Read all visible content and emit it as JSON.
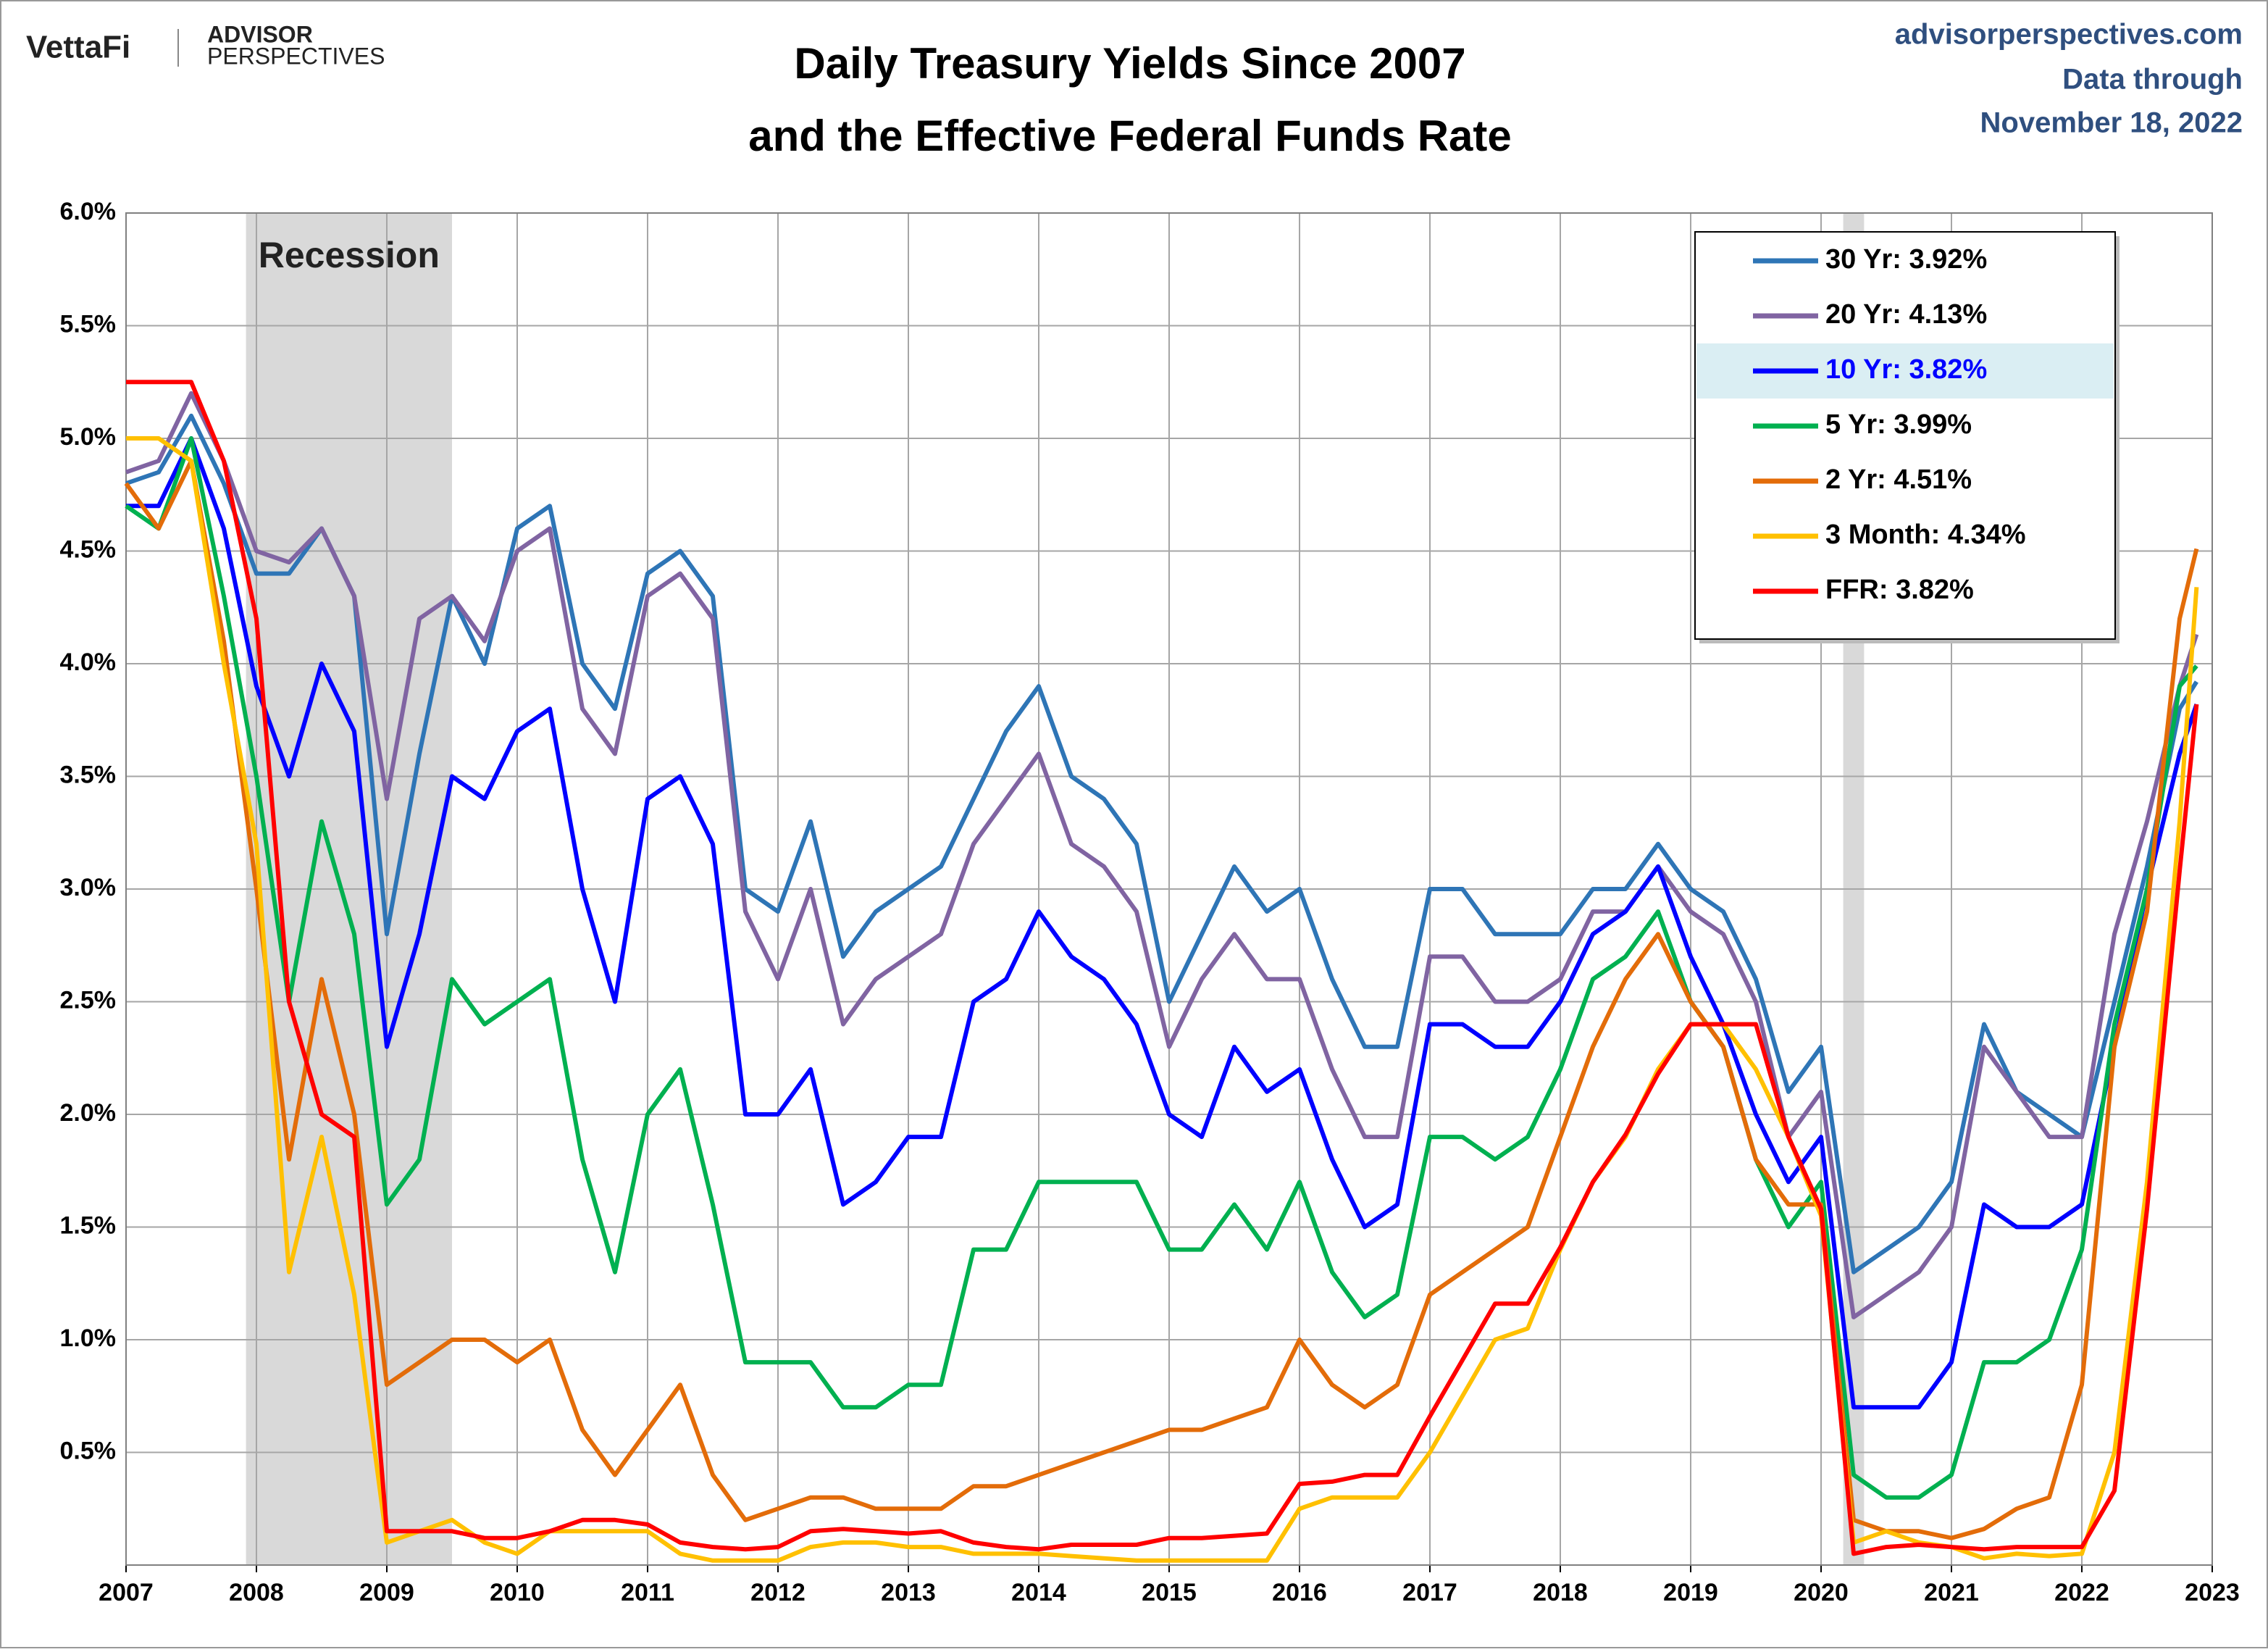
{
  "header": {
    "logo": "VettaFi",
    "brand": [
      "ADVISOR",
      "PERSPECTIVES"
    ],
    "site": "advisorperspectives.com",
    "note": [
      "Data through",
      "November 18, 2022"
    ]
  },
  "chart_data": {
    "type": "line",
    "title": [
      "Daily Treasury Yields Since 2007",
      "and the Effective Federal Funds Rate"
    ],
    "annotation": "Recession",
    "recessions": [
      [
        2007.92,
        2009.5
      ],
      [
        2020.17,
        2020.33
      ]
    ],
    "recession_color": "#d9d9d9",
    "xlim": [
      2007,
      2023
    ],
    "xticks": [
      2007,
      2008,
      2009,
      2010,
      2011,
      2012,
      2013,
      2014,
      2015,
      2016,
      2017,
      2018,
      2019,
      2020,
      2021,
      2022,
      2023
    ],
    "ylim": [
      0,
      6
    ],
    "yticks": [
      {
        "value": 0.5,
        "label": "0.5%"
      },
      {
        "value": 1,
        "label": "1.0%"
      },
      {
        "value": 1.5,
        "label": "1.5%"
      },
      {
        "value": 2,
        "label": "2.0%"
      },
      {
        "value": 2.5,
        "label": "2.5%"
      },
      {
        "value": 3,
        "label": "3.0%"
      },
      {
        "value": 3.5,
        "label": "3.5%"
      },
      {
        "value": 4,
        "label": "4.0%"
      },
      {
        "value": 4.5,
        "label": "4.5%"
      },
      {
        "value": 5,
        "label": "5.0%"
      },
      {
        "value": 5.5,
        "label": "5.5%"
      },
      {
        "value": 6,
        "label": "6.0%"
      }
    ],
    "grid": true,
    "legend": "upper right",
    "x": [
      2007,
      2007.25,
      2007.5,
      2007.75,
      2008,
      2008.25,
      2008.5,
      2008.75,
      2009,
      2009.25,
      2009.5,
      2009.75,
      2010,
      2010.25,
      2010.5,
      2010.75,
      2011,
      2011.25,
      2011.5,
      2011.75,
      2012,
      2012.25,
      2012.5,
      2012.75,
      2013,
      2013.25,
      2013.5,
      2013.75,
      2014,
      2014.25,
      2014.5,
      2014.75,
      2015,
      2015.25,
      2015.5,
      2015.75,
      2016,
      2016.25,
      2016.5,
      2016.75,
      2017,
      2017.25,
      2017.5,
      2017.75,
      2018,
      2018.25,
      2018.5,
      2018.75,
      2019,
      2019.25,
      2019.5,
      2019.75,
      2020,
      2020.25,
      2020.5,
      2020.75,
      2021,
      2021.25,
      2021.5,
      2021.75,
      2022,
      2022.25,
      2022.5,
      2022.75,
      2022.88
    ],
    "series": [
      {
        "name": "30 Yr: 3.92%",
        "color": "#2e75b6",
        "values": [
          4.8,
          4.85,
          5.1,
          4.8,
          4.4,
          4.4,
          4.6,
          4.3,
          2.8,
          3.6,
          4.3,
          4.0,
          4.6,
          4.7,
          4.0,
          3.8,
          4.4,
          4.5,
          4.3,
          3.0,
          2.9,
          3.3,
          2.7,
          2.9,
          3.0,
          3.1,
          3.4,
          3.7,
          3.9,
          3.5,
          3.4,
          3.2,
          2.5,
          2.8,
          3.1,
          2.9,
          3.0,
          2.6,
          2.3,
          2.3,
          3.0,
          3.0,
          2.8,
          2.8,
          2.8,
          3.0,
          3.0,
          3.2,
          3.0,
          2.9,
          2.6,
          2.1,
          2.3,
          1.3,
          1.4,
          1.5,
          1.7,
          2.4,
          2.1,
          2.0,
          1.9,
          2.5,
          3.1,
          3.8,
          3.92
        ]
      },
      {
        "name": "20 Yr: 4.13%",
        "color": "#8064a2",
        "values": [
          4.85,
          4.9,
          5.2,
          4.9,
          4.5,
          4.45,
          4.6,
          4.3,
          3.4,
          4.2,
          4.3,
          4.1,
          4.5,
          4.6,
          3.8,
          3.6,
          4.3,
          4.4,
          4.2,
          2.9,
          2.6,
          3.0,
          2.4,
          2.6,
          2.7,
          2.8,
          3.2,
          3.4,
          3.6,
          3.2,
          3.1,
          2.9,
          2.3,
          2.6,
          2.8,
          2.6,
          2.6,
          2.2,
          1.9,
          1.9,
          2.7,
          2.7,
          2.5,
          2.5,
          2.6,
          2.9,
          2.9,
          3.1,
          2.9,
          2.8,
          2.5,
          1.9,
          2.1,
          1.1,
          1.2,
          1.3,
          1.5,
          2.3,
          2.1,
          1.9,
          1.9,
          2.8,
          3.3,
          3.9,
          4.13
        ]
      },
      {
        "name": "10 Yr: 3.82%",
        "color": "#0000ff",
        "values": [
          4.7,
          4.7,
          5.0,
          4.6,
          3.9,
          3.5,
          4.0,
          3.7,
          2.3,
          2.8,
          3.5,
          3.4,
          3.7,
          3.8,
          3.0,
          2.5,
          3.4,
          3.5,
          3.2,
          2.0,
          2.0,
          2.2,
          1.6,
          1.7,
          1.9,
          1.9,
          2.5,
          2.6,
          2.9,
          2.7,
          2.6,
          2.4,
          2.0,
          1.9,
          2.3,
          2.1,
          2.2,
          1.8,
          1.5,
          1.6,
          2.4,
          2.4,
          2.3,
          2.3,
          2.5,
          2.8,
          2.9,
          3.1,
          2.7,
          2.4,
          2.0,
          1.7,
          1.9,
          0.7,
          0.7,
          0.7,
          0.9,
          1.6,
          1.5,
          1.5,
          1.6,
          2.3,
          3.0,
          3.6,
          3.82
        ]
      },
      {
        "name": "5 Yr: 3.99%",
        "color": "#00b050",
        "values": [
          4.7,
          4.6,
          5.0,
          4.3,
          3.5,
          2.5,
          3.3,
          2.8,
          1.6,
          1.8,
          2.6,
          2.4,
          2.5,
          2.6,
          1.8,
          1.3,
          2.0,
          2.2,
          1.6,
          0.9,
          0.9,
          0.9,
          0.7,
          0.7,
          0.8,
          0.8,
          1.4,
          1.4,
          1.7,
          1.7,
          1.7,
          1.7,
          1.4,
          1.4,
          1.6,
          1.4,
          1.7,
          1.3,
          1.1,
          1.2,
          1.9,
          1.9,
          1.8,
          1.9,
          2.2,
          2.6,
          2.7,
          2.9,
          2.5,
          2.3,
          1.8,
          1.5,
          1.7,
          0.4,
          0.3,
          0.3,
          0.4,
          0.9,
          0.9,
          1.0,
          1.4,
          2.4,
          3.0,
          3.9,
          3.99
        ]
      },
      {
        "name": "2 Yr: 4.51%",
        "color": "#e36c09",
        "values": [
          4.8,
          4.6,
          4.9,
          4.1,
          3.0,
          1.8,
          2.6,
          2.0,
          0.8,
          0.9,
          1.0,
          1.0,
          0.9,
          1.0,
          0.6,
          0.4,
          0.6,
          0.8,
          0.4,
          0.2,
          0.25,
          0.3,
          0.3,
          0.25,
          0.25,
          0.25,
          0.35,
          0.35,
          0.4,
          0.45,
          0.5,
          0.55,
          0.6,
          0.6,
          0.65,
          0.7,
          1.0,
          0.8,
          0.7,
          0.8,
          1.2,
          1.3,
          1.4,
          1.5,
          1.9,
          2.3,
          2.6,
          2.8,
          2.5,
          2.3,
          1.8,
          1.6,
          1.6,
          0.2,
          0.15,
          0.15,
          0.12,
          0.16,
          0.25,
          0.3,
          0.8,
          2.3,
          2.9,
          4.2,
          4.51
        ]
      },
      {
        "name": "3 Month: 4.34%",
        "color": "#ffc000",
        "values": [
          5.0,
          5.0,
          4.9,
          4.0,
          3.2,
          1.3,
          1.9,
          1.2,
          0.1,
          0.15,
          0.2,
          0.1,
          0.05,
          0.15,
          0.15,
          0.15,
          0.15,
          0.05,
          0.02,
          0.02,
          0.02,
          0.08,
          0.1,
          0.1,
          0.08,
          0.08,
          0.05,
          0.05,
          0.05,
          0.04,
          0.03,
          0.02,
          0.02,
          0.02,
          0.02,
          0.02,
          0.25,
          0.3,
          0.3,
          0.3,
          0.5,
          0.75,
          1.0,
          1.05,
          1.4,
          1.7,
          1.9,
          2.2,
          2.4,
          2.4,
          2.2,
          1.9,
          1.55,
          0.1,
          0.15,
          0.1,
          0.08,
          0.03,
          0.05,
          0.04,
          0.05,
          0.5,
          1.7,
          3.3,
          4.34
        ]
      },
      {
        "name": "FFR: 3.82%",
        "color": "#ff0000",
        "values": [
          5.25,
          5.25,
          5.25,
          4.9,
          4.2,
          2.5,
          2.0,
          1.9,
          0.15,
          0.15,
          0.15,
          0.12,
          0.12,
          0.15,
          0.2,
          0.2,
          0.18,
          0.1,
          0.08,
          0.07,
          0.08,
          0.15,
          0.16,
          0.15,
          0.14,
          0.15,
          0.1,
          0.08,
          0.07,
          0.09,
          0.09,
          0.09,
          0.12,
          0.12,
          0.13,
          0.14,
          0.36,
          0.37,
          0.4,
          0.4,
          0.66,
          0.91,
          1.16,
          1.16,
          1.41,
          1.7,
          1.91,
          2.18,
          2.4,
          2.4,
          2.4,
          1.9,
          1.58,
          0.05,
          0.08,
          0.09,
          0.08,
          0.07,
          0.08,
          0.08,
          0.08,
          0.33,
          1.58,
          3.08,
          3.82
        ]
      }
    ]
  }
}
